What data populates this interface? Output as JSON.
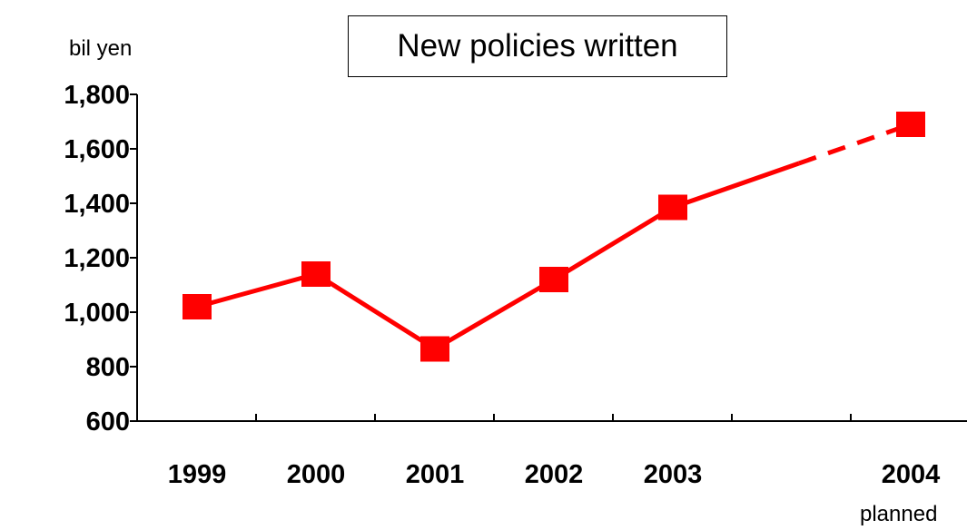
{
  "chart_data": {
    "type": "line",
    "title": "New policies written",
    "ylabel": "bil yen",
    "xlabel": "",
    "ylim": [
      600,
      1800
    ],
    "yticks": [
      600,
      800,
      1000,
      1200,
      1400,
      1600,
      1800
    ],
    "ytick_labels": [
      "600",
      "800",
      "1,000",
      "1,200",
      "1,400",
      "1,600",
      "1,800"
    ],
    "categories": [
      "1999",
      "2000",
      "2001",
      "2002",
      "2003",
      "2004"
    ],
    "series": [
      {
        "values": [
          1020,
          1140,
          865,
          1120,
          1385,
          1690
        ]
      }
    ],
    "planned_note": "planned",
    "colors": {
      "series": "#ff0000",
      "axis": "#000000"
    },
    "grid": false,
    "legend": "none"
  }
}
